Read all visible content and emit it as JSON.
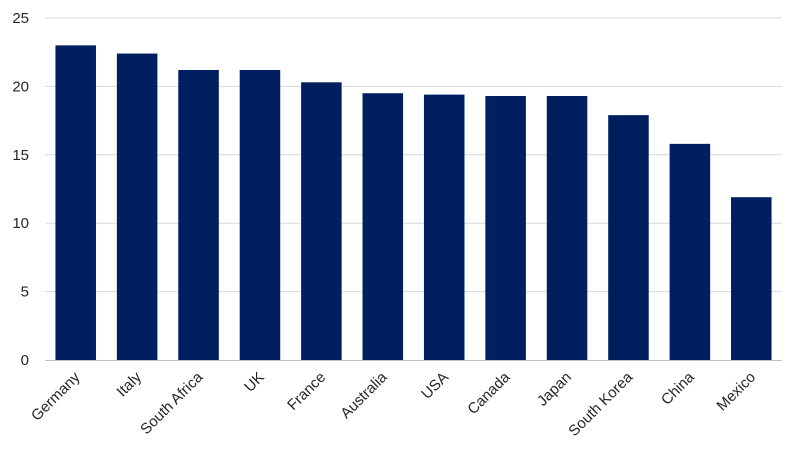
{
  "chart_data": {
    "type": "bar",
    "title": "",
    "xlabel": "",
    "ylabel": "",
    "categories": [
      "Germany",
      "Italy",
      "South Africa",
      "UK",
      "France",
      "Australia",
      "USA",
      "Canada",
      "Japan",
      "South Korea",
      "China",
      "Mexico"
    ],
    "values": [
      23.0,
      22.4,
      21.2,
      21.2,
      20.3,
      19.5,
      19.4,
      19.3,
      19.3,
      17.9,
      15.8,
      11.9
    ],
    "ylim": [
      0,
      25
    ],
    "yticks": [
      0,
      5,
      10,
      15,
      20,
      25
    ],
    "grid": true,
    "legend": "none",
    "colors": {
      "bar": "#001f5f",
      "grid": "#d9d9d9",
      "axis": "#bfbfbf"
    }
  }
}
